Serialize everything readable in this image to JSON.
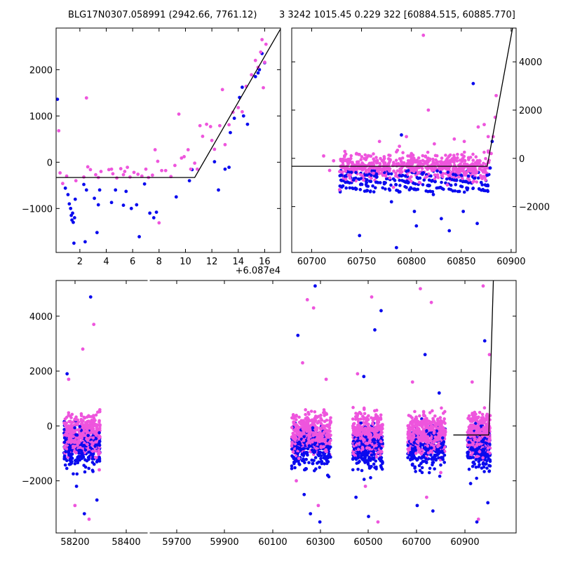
{
  "titles": {
    "left": "BLG17N0307.058991 (2942.66, 7761.12)",
    "right": "3 3242 1015.45 0.229 322 [60884.515, 60885.770]"
  },
  "colors": {
    "series_a": "#0a0aee",
    "series_b": "#ee55dd",
    "model": "#000000"
  },
  "chart_data": [
    {
      "type": "scatter",
      "name": "zoom-peak",
      "xlim": [
        0.2,
        17.2
      ],
      "ylim": [
        -1950,
        2900
      ],
      "x_offset_label": "+6.087e4",
      "xticks": [
        2,
        4,
        6,
        8,
        10,
        12,
        14,
        16
      ],
      "yticks": [
        -1000,
        0,
        1000,
        2000
      ],
      "ytick_side": "left",
      "model_line": [
        [
          0.2,
          -330
        ],
        [
          10.7,
          -330
        ],
        [
          17.2,
          2880
        ]
      ],
      "series": [
        {
          "name": "survey-a",
          "color": "#0a0aee",
          "points": [
            [
              0.3,
              1360
            ],
            [
              0.9,
              -560
            ],
            [
              1.1,
              -700
            ],
            [
              1.2,
              -900
            ],
            [
              1.3,
              -1000
            ],
            [
              1.35,
              -1150
            ],
            [
              1.4,
              -1250
            ],
            [
              1.45,
              -1100
            ],
            [
              1.5,
              -1300
            ],
            [
              1.55,
              -1750
            ],
            [
              1.6,
              -1200
            ],
            [
              1.65,
              -800
            ],
            [
              2.3,
              -480
            ],
            [
              2.4,
              -1720
            ],
            [
              2.5,
              -600
            ],
            [
              3.1,
              -780
            ],
            [
              3.3,
              -1520
            ],
            [
              3.4,
              -920
            ],
            [
              3.5,
              -600
            ],
            [
              4.4,
              -870
            ],
            [
              4.7,
              -600
            ],
            [
              5.3,
              -930
            ],
            [
              5.5,
              -630
            ],
            [
              5.9,
              -1000
            ],
            [
              6.3,
              -920
            ],
            [
              6.5,
              -1610
            ],
            [
              6.9,
              -470
            ],
            [
              7.3,
              -1100
            ],
            [
              7.6,
              -1200
            ],
            [
              7.8,
              -1080
            ],
            [
              9.3,
              -750
            ],
            [
              10.3,
              -400
            ],
            [
              10.5,
              -160
            ],
            [
              12.2,
              10
            ],
            [
              12.5,
              -600
            ],
            [
              13.0,
              -150
            ],
            [
              13.3,
              -110
            ],
            [
              13.4,
              640
            ],
            [
              13.7,
              950
            ],
            [
              14.1,
              1400
            ],
            [
              14.3,
              1620
            ],
            [
              14.4,
              1000
            ],
            [
              14.7,
              820
            ],
            [
              15.3,
              1850
            ],
            [
              15.5,
              1930
            ],
            [
              15.6,
              2000
            ],
            [
              15.8,
              2350
            ],
            [
              16.0,
              2150
            ]
          ]
        },
        {
          "name": "survey-b",
          "color": "#ee55dd",
          "points": [
            [
              0.4,
              680
            ],
            [
              0.5,
              -230
            ],
            [
              0.7,
              -460
            ],
            [
              1.0,
              -300
            ],
            [
              1.7,
              -400
            ],
            [
              2.3,
              -320
            ],
            [
              2.5,
              1390
            ],
            [
              2.6,
              -100
            ],
            [
              2.8,
              -160
            ],
            [
              3.2,
              -270
            ],
            [
              3.4,
              -330
            ],
            [
              3.6,
              -200
            ],
            [
              4.2,
              -160
            ],
            [
              4.4,
              -150
            ],
            [
              4.5,
              -250
            ],
            [
              4.8,
              -340
            ],
            [
              5.1,
              -140
            ],
            [
              5.3,
              -270
            ],
            [
              5.4,
              -200
            ],
            [
              5.6,
              -110
            ],
            [
              5.8,
              -320
            ],
            [
              6.1,
              -220
            ],
            [
              6.4,
              -260
            ],
            [
              6.7,
              -300
            ],
            [
              7.0,
              -150
            ],
            [
              7.2,
              -330
            ],
            [
              7.5,
              -280
            ],
            [
              7.7,
              270
            ],
            [
              7.9,
              20
            ],
            [
              8.0,
              -1310
            ],
            [
              8.2,
              -180
            ],
            [
              8.5,
              -180
            ],
            [
              8.9,
              -310
            ],
            [
              9.2,
              -70
            ],
            [
              9.5,
              1040
            ],
            [
              9.7,
              90
            ],
            [
              9.9,
              120
            ],
            [
              10.2,
              270
            ],
            [
              10.4,
              -150
            ],
            [
              10.7,
              -20
            ],
            [
              10.9,
              -150
            ],
            [
              11.1,
              790
            ],
            [
              11.3,
              560
            ],
            [
              11.6,
              820
            ],
            [
              11.9,
              770
            ],
            [
              12.0,
              470
            ],
            [
              12.2,
              280
            ],
            [
              12.6,
              790
            ],
            [
              12.8,
              1570
            ],
            [
              13.0,
              380
            ],
            [
              13.3,
              810
            ],
            [
              13.6,
              1080
            ],
            [
              14.0,
              1180
            ],
            [
              14.3,
              1090
            ],
            [
              14.6,
              1640
            ],
            [
              15.0,
              1890
            ],
            [
              15.3,
              2200
            ],
            [
              15.5,
              2050
            ],
            [
              15.7,
              2380
            ],
            [
              15.8,
              2650
            ],
            [
              15.9,
              1610
            ],
            [
              16.0,
              2160
            ],
            [
              16.1,
              2550
            ]
          ]
        }
      ]
    },
    {
      "type": "scatter",
      "name": "season-2024",
      "xlim": [
        60680,
        60905
      ],
      "ylim": [
        -3900,
        5400
      ],
      "xticks": [
        60700,
        60750,
        60800,
        60850,
        60900
      ],
      "yticks": [
        -2000,
        0,
        2000,
        4000
      ],
      "ytick_side": "right",
      "model_line": [
        [
          60680,
          -330
        ],
        [
          60876,
          -330
        ],
        [
          60905,
          6200
        ]
      ],
      "series": [
        {
          "name": "survey-a",
          "color": "#0a0aee",
          "points": [
            [
              60735,
              -700
            ],
            [
              60742,
              -900
            ],
            [
              60748,
              -3200
            ],
            [
              60755,
              -1000
            ],
            [
              60765,
              -650
            ],
            [
              60780,
              -1800
            ],
            [
              60785,
              -3700
            ],
            [
              60790,
              970
            ],
            [
              60798,
              -1300
            ],
            [
              60803,
              -2200
            ],
            [
              60805,
              -2800
            ],
            [
              60812,
              -600
            ],
            [
              60818,
              -900
            ],
            [
              60822,
              -1500
            ],
            [
              60830,
              -2500
            ],
            [
              60838,
              -3000
            ],
            [
              60843,
              -900
            ],
            [
              60852,
              -2200
            ],
            [
              60856,
              -1300
            ],
            [
              60862,
              3100
            ],
            [
              60866,
              -2700
            ],
            [
              60870,
              -1000
            ],
            [
              60876,
              -700
            ],
            [
              60879,
              -400
            ],
            [
              60881,
              700
            ]
          ]
        },
        {
          "name": "survey-b",
          "color": "#ee55dd",
          "points": [
            [
              60712,
              100
            ],
            [
              60718,
              -500
            ],
            [
              60722,
              -100
            ],
            [
              60728,
              -1300
            ],
            [
              60733,
              100
            ],
            [
              60737,
              -700
            ],
            [
              60745,
              200
            ],
            [
              60752,
              -900
            ],
            [
              60760,
              -200
            ],
            [
              60768,
              700
            ],
            [
              60775,
              -400
            ],
            [
              60782,
              -1200
            ],
            [
              60788,
              500
            ],
            [
              60795,
              900
            ],
            [
              60800,
              -500
            ],
            [
              60808,
              -1000
            ],
            [
              60812,
              5100
            ],
            [
              60817,
              2000
            ],
            [
              60823,
              600
            ],
            [
              60830,
              -300
            ],
            [
              60836,
              -1100
            ],
            [
              60843,
              800
            ],
            [
              60848,
              -600
            ],
            [
              60853,
              700
            ],
            [
              60858,
              -900
            ],
            [
              60863,
              -600
            ],
            [
              60867,
              1300
            ],
            [
              60870,
              -800
            ],
            [
              60873,
              1400
            ],
            [
              60877,
              900
            ],
            [
              60880,
              200
            ],
            [
              60882,
              900
            ],
            [
              60884,
              1700
            ],
            [
              60885,
              2600
            ]
          ]
        }
      ]
    },
    {
      "type": "scatter",
      "name": "all-seasons",
      "xlim": [
        58120,
        61050
      ],
      "ylim": [
        -3900,
        5300
      ],
      "broken_axis_after": 58460,
      "xticks": [
        58200,
        58400,
        59700,
        59900,
        60100,
        60300,
        60500,
        60700,
        60900
      ],
      "yticks": [
        -2000,
        0,
        2000,
        4000
      ],
      "ytick_side": "left",
      "model_line": [
        [
          60650,
          -330
        ],
        [
          60876,
          -330
        ],
        [
          60905,
          5300
        ]
      ],
      "season_ranges": [
        [
          58170,
          58400
        ],
        [
          59620,
          59870
        ],
        [
          60010,
          60200
        ],
        [
          60360,
          60600
        ],
        [
          60740,
          60885
        ]
      ],
      "series": [
        {
          "name": "survey-a",
          "color": "#0a0aee",
          "points": [
            [
              58190,
              1900
            ],
            [
              58220,
              -1300
            ],
            [
              58250,
              -2200
            ],
            [
              58300,
              -3200
            ],
            [
              58340,
              4700
            ],
            [
              58380,
              -2700
            ],
            [
              59660,
              3300
            ],
            [
              59700,
              -2500
            ],
            [
              59740,
              -3200
            ],
            [
              59770,
              5100
            ],
            [
              59800,
              -3500
            ],
            [
              59850,
              -1800
            ],
            [
              60030,
              -2600
            ],
            [
              60080,
              1800
            ],
            [
              60110,
              -3300
            ],
            [
              60150,
              3500
            ],
            [
              60190,
              4200
            ],
            [
              60380,
              -1200
            ],
            [
              60420,
              -2900
            ],
            [
              60470,
              2600
            ],
            [
              60520,
              -3100
            ],
            [
              60560,
              1200
            ],
            [
              60760,
              -2100
            ],
            [
              60800,
              -3500
            ],
            [
              60850,
              3100
            ],
            [
              60870,
              -2800
            ]
          ]
        },
        {
          "name": "survey-b",
          "color": "#ee55dd",
          "points": [
            [
              58200,
              1700
            ],
            [
              58240,
              -2900
            ],
            [
              58290,
              2800
            ],
            [
              58330,
              -3400
            ],
            [
              58360,
              3700
            ],
            [
              58395,
              -1600
            ],
            [
              59650,
              -2000
            ],
            [
              59690,
              2300
            ],
            [
              59720,
              4600
            ],
            [
              59760,
              4300
            ],
            [
              59790,
              -2900
            ],
            [
              59840,
              1700
            ],
            [
              60040,
              1900
            ],
            [
              60090,
              -2200
            ],
            [
              60130,
              4700
            ],
            [
              60170,
              -3500
            ],
            [
              60390,
              1600
            ],
            [
              60440,
              5000
            ],
            [
              60480,
              -2600
            ],
            [
              60510,
              4500
            ],
            [
              60570,
              -1700
            ],
            [
              60770,
              1600
            ],
            [
              60810,
              -3400
            ],
            [
              60840,
              5100
            ],
            [
              60880,
              2600
            ]
          ]
        }
      ]
    }
  ]
}
